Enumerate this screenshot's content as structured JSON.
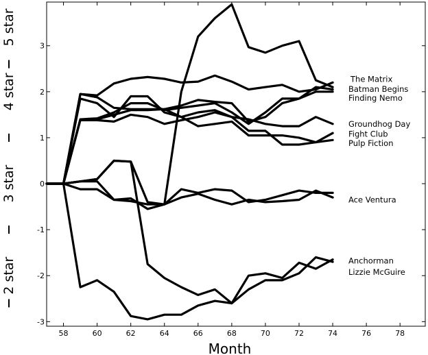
{
  "chart_data": {
    "type": "line",
    "xlabel": "Month",
    "ylabel": "",
    "xlim": [
      57,
      79.5
    ],
    "ylim": [
      -3.1,
      3.95
    ],
    "xticks": [
      58,
      60,
      62,
      64,
      66,
      68,
      70,
      72,
      74,
      76,
      78
    ],
    "yticks": [
      -3,
      -2,
      -1,
      0,
      1,
      2,
      3
    ],
    "star_labels": [
      {
        "text": "2 star",
        "y": -2
      },
      {
        "text": "3 star",
        "y": 0
      },
      {
        "text": "4 star",
        "y": 2
      },
      {
        "text": "5 star",
        "y": 3.4
      }
    ],
    "star_separators": [
      -2.6,
      -1,
      1,
      2.6
    ],
    "grid": false,
    "legend": "inline labels at right end of lines",
    "x": [
      57,
      58,
      59,
      60,
      61,
      62,
      63,
      64,
      65,
      66,
      67,
      68,
      69,
      70,
      71,
      72,
      73,
      74
    ],
    "series": [
      {
        "name": "The Matrix",
        "values": [
          0,
          0,
          1.95,
          1.92,
          2.18,
          2.28,
          2.32,
          2.28,
          2.2,
          2.22,
          2.35,
          2.22,
          2.05,
          2.1,
          2.15,
          2.0,
          2.05,
          2.2
        ]
      },
      {
        "name": "Batman Begins",
        "values": [
          0,
          0,
          1.4,
          1.42,
          1.55,
          1.75,
          1.75,
          1.6,
          1.65,
          1.7,
          1.75,
          1.55,
          1.3,
          1.55,
          1.85,
          1.85,
          2.1,
          2.05
        ]
      },
      {
        "name": "Finding Nemo",
        "values": [
          0,
          0,
          1.95,
          1.88,
          1.65,
          1.62,
          1.62,
          1.62,
          1.7,
          1.82,
          1.78,
          1.75,
          1.35,
          1.45,
          1.75,
          1.85,
          2.0,
          2.0
        ]
      },
      {
        "name": "Groundhog Day",
        "values": [
          0,
          0,
          1.38,
          1.38,
          1.35,
          1.5,
          1.45,
          1.3,
          1.38,
          1.45,
          1.55,
          1.45,
          1.4,
          1.3,
          1.25,
          1.25,
          1.45,
          1.3
        ]
      },
      {
        "name": "Fight Club",
        "values": [
          0,
          0,
          1.85,
          1.75,
          1.45,
          1.9,
          1.9,
          1.55,
          1.45,
          1.25,
          1.3,
          1.35,
          1.05,
          1.05,
          1.05,
          1.0,
          0.9,
          1.1
        ]
      },
      {
        "name": "Pulp Fiction",
        "values": [
          0,
          0,
          1.4,
          1.4,
          1.5,
          1.6,
          1.6,
          1.62,
          1.45,
          1.55,
          1.6,
          1.45,
          1.15,
          1.15,
          0.85,
          0.85,
          0.9,
          0.95
        ]
      },
      {
        "name": "Ace Ventura",
        "values": [
          0,
          0,
          -0.12,
          -0.12,
          -0.35,
          -0.38,
          -0.45,
          -0.45,
          -0.3,
          -0.22,
          -0.35,
          -0.45,
          -0.35,
          -0.4,
          -0.38,
          -0.35,
          -0.15,
          -0.3
        ]
      },
      {
        "name": "Anchorman",
        "values": [
          0,
          0,
          -2.25,
          -2.1,
          -2.35,
          -2.88,
          -2.95,
          -2.85,
          -2.85,
          -2.65,
          -2.55,
          -2.6,
          -2.3,
          -2.1,
          -2.1,
          -1.95,
          -1.6,
          -1.7
        ]
      },
      {
        "name": "Lizzie McGuire",
        "values": [
          0,
          0,
          0.05,
          0.05,
          -0.35,
          -0.32,
          -0.55,
          -0.45,
          -0.12,
          -0.2,
          -0.12,
          -0.15,
          -0.4,
          -0.35,
          -0.25,
          -0.15,
          -0.2,
          -0.2
        ]
      },
      {
        "name": "",
        "values": [
          0,
          0,
          0.05,
          0.1,
          0.5,
          0.48,
          -1.75,
          -2.05,
          -2.25,
          -2.42,
          -2.3,
          -2.6,
          -2.0,
          -1.95,
          -2.05,
          -1.72,
          -1.85,
          -1.65
        ]
      },
      {
        "name": "",
        "values": [
          0,
          0,
          0.05,
          0.1,
          0.5,
          0.48,
          -0.4,
          -0.45,
          2.0,
          3.2,
          3.6,
          3.9,
          2.97,
          2.85,
          3.0,
          3.1,
          2.25,
          2.1
        ]
      }
    ]
  }
}
